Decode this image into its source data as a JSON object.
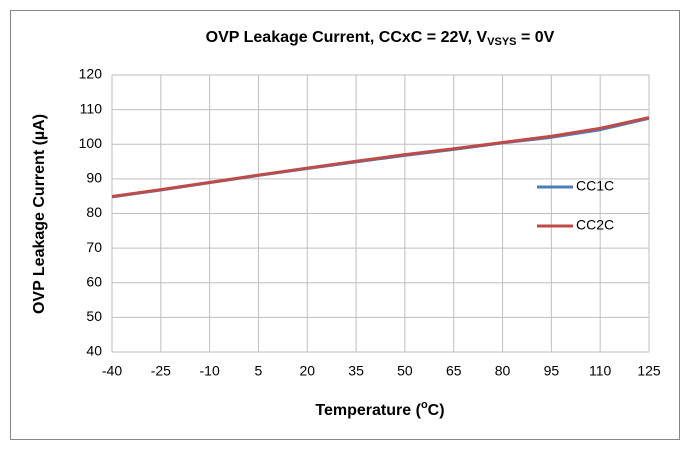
{
  "chart_data": {
    "type": "line",
    "title": {
      "text": "OVP Leakage Current, CCxC = 22V, V",
      "subscript": "VSYS",
      "suffix": " = 0V"
    },
    "y_label": "OVP Leakage Current (µA)",
    "x_label": {
      "text": "Temperature (",
      "superscript": "o",
      "suffix": "C)"
    },
    "x": [
      -40,
      -25,
      -10,
      5,
      20,
      35,
      50,
      65,
      80,
      95,
      110,
      125
    ],
    "series": [
      {
        "name": "CC1C",
        "color": "#4a7ebb",
        "values": [
          84.8,
          86.8,
          88.9,
          91.0,
          93.0,
          94.9,
          96.8,
          98.5,
          100.4,
          102.0,
          104.2,
          107.5
        ]
      },
      {
        "name": "CC2C",
        "color": "#be4b48",
        "values": [
          84.9,
          86.9,
          89.0,
          91.1,
          93.1,
          95.1,
          97.0,
          98.7,
          100.5,
          102.3,
          104.6,
          107.7
        ]
      }
    ],
    "xlim": [
      -40,
      125
    ],
    "xticks": [
      -40,
      -25,
      -10,
      5,
      20,
      35,
      50,
      65,
      80,
      95,
      110,
      125
    ],
    "ylim": [
      40,
      120
    ],
    "yticks": [
      40,
      50,
      60,
      70,
      80,
      90,
      100,
      110,
      120
    ],
    "grid": true,
    "legend": "right"
  }
}
